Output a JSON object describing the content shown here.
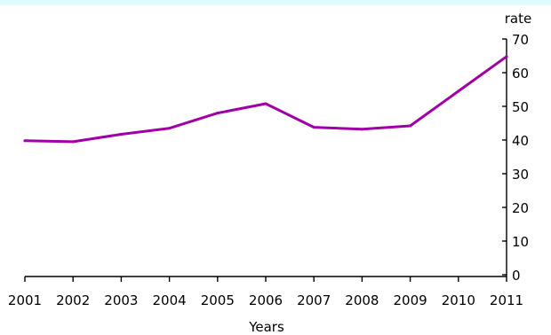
{
  "colors": {
    "top_band": "#dffcff",
    "line": "#a000a6",
    "axis": "#000000"
  },
  "chart_data": {
    "type": "line",
    "x": [
      "2001",
      "2002",
      "2003",
      "2004",
      "2005",
      "2006",
      "2007",
      "2008",
      "2009",
      "2010",
      "2011"
    ],
    "series": [
      {
        "values": [
          39.8,
          39.5,
          41.7,
          43.5,
          48.0,
          50.8,
          43.8,
          43.2,
          44.2,
          54.5,
          64.8
        ]
      }
    ],
    "xlabel": "Years",
    "ylabel": "rate",
    "ylim": [
      0,
      70
    ],
    "yticks": [
      0,
      10,
      20,
      30,
      40,
      50,
      60,
      70
    ],
    "y_axis_side": "right",
    "grid": false,
    "legend": "none"
  }
}
